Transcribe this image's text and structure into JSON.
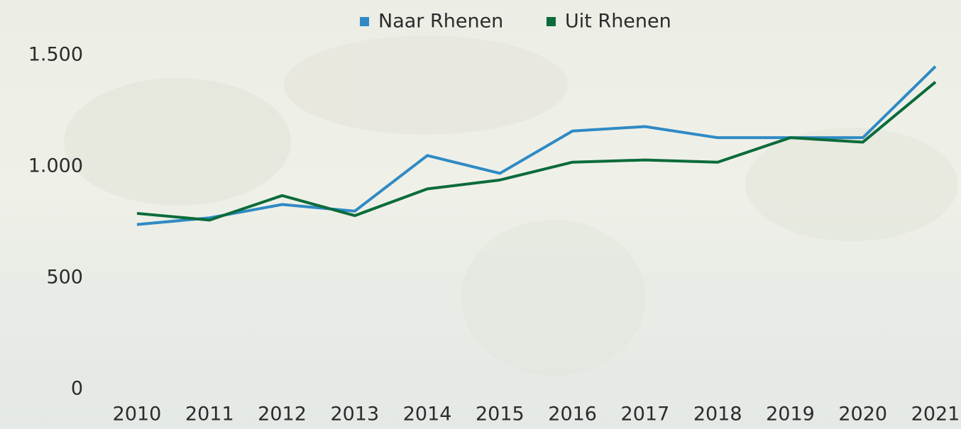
{
  "chart_data": {
    "type": "line",
    "categories": [
      "2010",
      "2011",
      "2012",
      "2013",
      "2014",
      "2015",
      "2016",
      "2017",
      "2018",
      "2019",
      "2020",
      "2021"
    ],
    "series": [
      {
        "name": "Naar Rhenen",
        "color": "#2f8ac4",
        "values": [
          740,
          770,
          830,
          800,
          1050,
          970,
          1160,
          1180,
          1130,
          1130,
          1130,
          1450
        ]
      },
      {
        "name": "Uit Rhenen",
        "color": "#0b6b3a",
        "values": [
          790,
          760,
          870,
          780,
          900,
          940,
          1020,
          1030,
          1020,
          1130,
          1110,
          1380
        ]
      }
    ],
    "ylim": [
      0,
      1500
    ],
    "yticks": [
      0,
      500,
      {
        "value": 1000,
        "label": "1.000"
      },
      {
        "value": 1500,
        "label": "1.500"
      }
    ],
    "grid": false,
    "legend": "top"
  }
}
